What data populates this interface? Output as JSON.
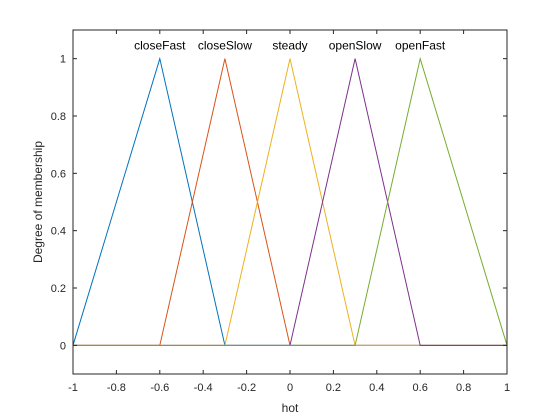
{
  "chart_data": {
    "type": "line",
    "title": "",
    "xlabel": "hot",
    "ylabel": "Degree of membership",
    "xlim": [
      -1,
      1
    ],
    "ylim": [
      -0.1,
      1.1
    ],
    "x_ticks": [
      -1,
      -0.8,
      -0.6,
      -0.4,
      -0.2,
      0,
      0.2,
      0.4,
      0.6,
      0.8,
      1
    ],
    "x_tick_labels": [
      "-1",
      "-0.8",
      "-0.6",
      "-0.4",
      "-0.2",
      "0",
      "0.2",
      "0.4",
      "0.6",
      "0.8",
      "1"
    ],
    "y_ticks": [
      0,
      0.2,
      0.4,
      0.6,
      0.8,
      1
    ],
    "y_tick_labels": [
      "0",
      "0.2",
      "0.4",
      "0.6",
      "0.8",
      "1"
    ],
    "grid": false,
    "series": [
      {
        "name": "closeFast",
        "color": "#0072BD",
        "x": [
          -1,
          -0.6,
          -0.3,
          1
        ],
        "y": [
          0,
          1,
          0,
          0
        ]
      },
      {
        "name": "closeSlow",
        "color": "#D95319",
        "x": [
          -1,
          -0.6,
          -0.3,
          0,
          1
        ],
        "y": [
          0,
          0,
          1,
          0,
          0
        ]
      },
      {
        "name": "steady",
        "color": "#EDB120",
        "x": [
          -1,
          -0.3,
          0,
          0.3,
          1
        ],
        "y": [
          0,
          0,
          1,
          0,
          0
        ]
      },
      {
        "name": "openSlow",
        "color": "#7E2F8E",
        "x": [
          -1,
          0,
          0.3,
          0.6,
          1
        ],
        "y": [
          0,
          0,
          1,
          0,
          0
        ]
      },
      {
        "name": "openFast",
        "color": "#77AC30",
        "x": [
          -1,
          0.3,
          0.6,
          1
        ],
        "y": [
          0,
          0,
          1,
          0
        ]
      }
    ],
    "mf_labels": [
      {
        "text": "closeFast",
        "x": -0.6,
        "y": 1
      },
      {
        "text": "closeSlow",
        "x": -0.3,
        "y": 1
      },
      {
        "text": "steady",
        "x": 0,
        "y": 1
      },
      {
        "text": "openSlow",
        "x": 0.3,
        "y": 1
      },
      {
        "text": "openFast",
        "x": 0.6,
        "y": 1
      }
    ]
  }
}
